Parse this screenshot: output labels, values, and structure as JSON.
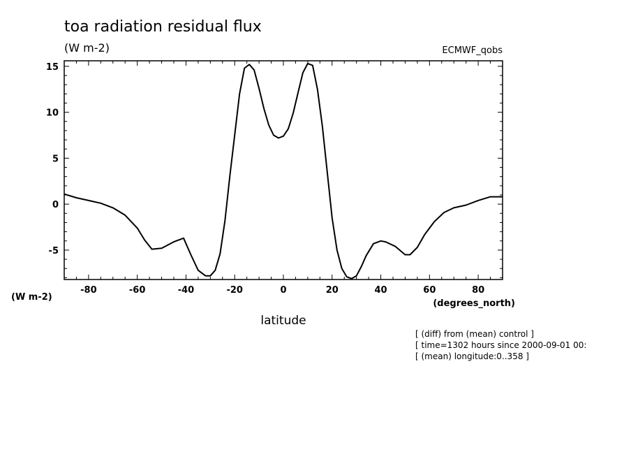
{
  "chart_data": {
    "type": "line",
    "title": "toa radiation residual flux",
    "units": "(W m-2)",
    "dataset": "ECMWF_qobs",
    "xlabel": "latitude",
    "x_units": "(degrees_north)",
    "y_axis_units": "(W m-2)",
    "xlim": [
      -90,
      90
    ],
    "ylim": [
      -8.2,
      15.6
    ],
    "xticks": [
      -80,
      -60,
      -40,
      -20,
      0,
      20,
      40,
      60,
      80
    ],
    "yticks": [
      -5,
      0,
      5,
      10,
      15
    ],
    "grid": false,
    "notes": [
      "[ (diff) from (mean) control ]",
      "[ time=1302 hours since 2000-09-01 00:",
      "[ (mean) longitude:0..358 ]"
    ],
    "series": [
      {
        "x": [
          -90,
          -85,
          -80,
          -75,
          -70,
          -65,
          -60,
          -57,
          -54,
          -50,
          -45,
          -41,
          -38,
          -35,
          -32,
          -30,
          -28,
          -26,
          -24,
          -22,
          -20,
          -18,
          -16,
          -14,
          -12,
          -10,
          -8,
          -6,
          -4,
          -2,
          0,
          2,
          4,
          6,
          8,
          10,
          12,
          14,
          16,
          18,
          20,
          22,
          24,
          26,
          28,
          30,
          32,
          34,
          37,
          40,
          42,
          46,
          50,
          52,
          55,
          58,
          62,
          66,
          70,
          75,
          80,
          85,
          90
        ],
        "y": [
          1.1,
          0.7,
          0.4,
          0.1,
          -0.4,
          -1.2,
          -2.6,
          -3.9,
          -4.9,
          -4.8,
          -4.1,
          -3.7,
          -5.5,
          -7.2,
          -7.8,
          -7.8,
          -7.2,
          -5.4,
          -1.8,
          3.0,
          7.5,
          12.0,
          14.8,
          15.2,
          14.6,
          12.6,
          10.4,
          8.6,
          7.5,
          7.2,
          7.4,
          8.2,
          9.9,
          12.1,
          14.3,
          15.3,
          15.1,
          12.5,
          8.5,
          3.5,
          -1.5,
          -5.0,
          -7.0,
          -7.9,
          -8.1,
          -7.8,
          -6.8,
          -5.6,
          -4.3,
          -4.0,
          -4.1,
          -4.6,
          -5.5,
          -5.5,
          -4.7,
          -3.3,
          -1.9,
          -0.9,
          -0.4,
          -0.1,
          0.4,
          0.8,
          0.8
        ]
      }
    ]
  }
}
